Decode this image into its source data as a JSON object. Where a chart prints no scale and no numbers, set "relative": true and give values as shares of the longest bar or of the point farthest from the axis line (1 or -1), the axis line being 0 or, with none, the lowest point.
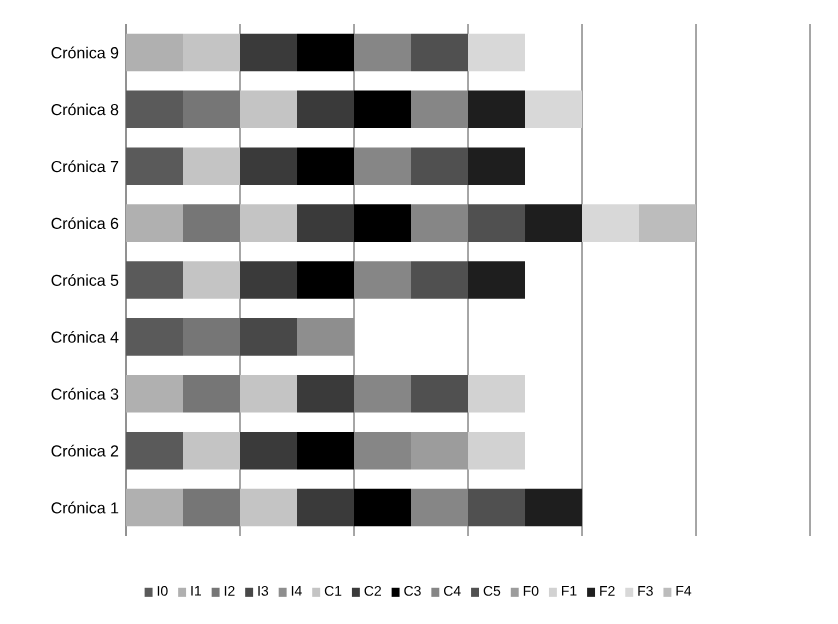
{
  "chart_data": {
    "type": "bar",
    "orientation": "horizontal",
    "stacked": true,
    "relative": true,
    "grid": "x",
    "legend": "bottom",
    "tick_labels": "y",
    "categories": [
      "Crónica 9",
      "Crónica 8",
      "Crónica 7",
      "Crónica 6",
      "Crónica 5",
      "Crónica 4",
      "Crónica 3",
      "Crónica 2",
      "Crónica 1"
    ],
    "series": [
      {
        "name": "I0",
        "color": "#5a5a5a",
        "values": [
          null,
          0.1,
          0.1,
          null,
          0.1,
          0.1,
          null,
          0.1,
          null
        ]
      },
      {
        "name": "I1",
        "color": "#b0b0b0",
        "values": [
          0.1,
          null,
          null,
          0.1,
          null,
          null,
          0.1,
          null,
          0.1
        ]
      },
      {
        "name": "I2",
        "color": "#767676",
        "values": [
          null,
          0.1,
          null,
          0.1,
          null,
          0.1,
          0.1,
          null,
          0.1
        ]
      },
      {
        "name": "I3",
        "color": "#484848",
        "values": [
          null,
          null,
          null,
          null,
          null,
          0.1,
          null,
          null,
          null
        ]
      },
      {
        "name": "I4",
        "color": "#8e8e8e",
        "values": [
          null,
          null,
          null,
          null,
          null,
          0.1,
          null,
          null,
          null
        ]
      },
      {
        "name": "C1",
        "color": "#c4c4c4",
        "values": [
          0.1,
          0.1,
          0.1,
          0.1,
          0.1,
          null,
          0.1,
          0.1,
          0.1
        ]
      },
      {
        "name": "C2",
        "color": "#3a3a3a",
        "values": [
          0.1,
          0.1,
          0.1,
          0.1,
          0.1,
          null,
          0.1,
          0.1,
          0.1
        ]
      },
      {
        "name": "C3",
        "color": "#000000",
        "values": [
          0.1,
          0.1,
          0.1,
          0.1,
          0.1,
          null,
          null,
          0.1,
          0.1
        ]
      },
      {
        "name": "C4",
        "color": "#868686",
        "values": [
          0.1,
          0.1,
          0.1,
          0.1,
          0.1,
          null,
          0.1,
          0.1,
          0.1
        ]
      },
      {
        "name": "C5",
        "color": "#505050",
        "values": [
          0.1,
          null,
          0.1,
          0.1,
          0.1,
          null,
          0.1,
          null,
          0.1
        ]
      },
      {
        "name": "F0",
        "color": "#9c9c9c",
        "values": [
          null,
          null,
          null,
          null,
          null,
          null,
          null,
          0.1,
          null
        ]
      },
      {
        "name": "F1",
        "color": "#d2d2d2",
        "values": [
          null,
          null,
          null,
          null,
          null,
          null,
          0.1,
          0.1,
          null
        ]
      },
      {
        "name": "F2",
        "color": "#1e1e1e",
        "values": [
          null,
          0.1,
          0.1,
          0.1,
          0.1,
          null,
          null,
          null,
          0.1
        ]
      },
      {
        "name": "F3",
        "color": "#d8d8d8",
        "values": [
          0.1,
          0.1,
          null,
          0.1,
          null,
          null,
          null,
          null,
          null
        ]
      },
      {
        "name": "F4",
        "color": "#bcbcbc",
        "values": [
          null,
          null,
          null,
          0.1,
          null,
          null,
          null,
          null,
          null
        ]
      }
    ]
  }
}
